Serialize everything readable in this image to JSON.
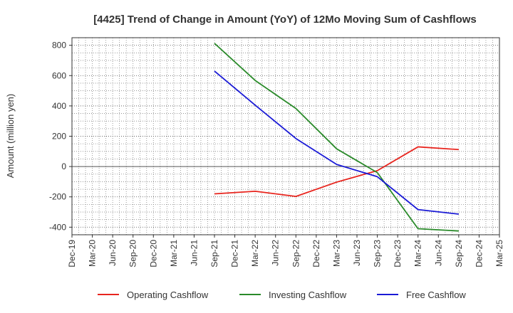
{
  "chart_data": {
    "type": "line",
    "title": "[4425]  Trend of Change in Amount (YoY) of 12Mo Moving Sum of Cashflows",
    "xlabel": "",
    "ylabel": "Amount (million yen)",
    "ylim": [
      -450,
      850
    ],
    "y_ticks": [
      -400,
      -200,
      0,
      200,
      400,
      600,
      800
    ],
    "y_tick_labels": [
      "-400",
      "-200",
      "0",
      "200",
      "400",
      "600",
      "800"
    ],
    "categories": [
      "Dec-19",
      "Mar-20",
      "Jun-20",
      "Sep-20",
      "Dec-20",
      "Mar-21",
      "Jun-21",
      "Sep-21",
      "Dec-21",
      "Mar-22",
      "Jun-22",
      "Sep-22",
      "Dec-22",
      "Mar-23",
      "Jun-23",
      "Sep-23",
      "Dec-23",
      "Mar-24",
      "Jun-24",
      "Sep-24",
      "Dec-24",
      "Mar-25"
    ],
    "grid": true,
    "legend_position": "bottom",
    "series": [
      {
        "name": "Operating Cashflow",
        "color": "#e8251e",
        "points": [
          {
            "x": "Sep-21",
            "y": -180
          },
          {
            "x": "Mar-22",
            "y": -163
          },
          {
            "x": "Sep-22",
            "y": -197
          },
          {
            "x": "Mar-23",
            "y": -103
          },
          {
            "x": "Sep-23",
            "y": -27
          },
          {
            "x": "Mar-24",
            "y": 130
          },
          {
            "x": "Sep-24",
            "y": 112
          }
        ]
      },
      {
        "name": "Investing Cashflow",
        "color": "#2a8a2a",
        "points": [
          {
            "x": "Sep-21",
            "y": 813
          },
          {
            "x": "Mar-22",
            "y": 568
          },
          {
            "x": "Sep-22",
            "y": 383
          },
          {
            "x": "Mar-23",
            "y": 117
          },
          {
            "x": "Sep-23",
            "y": -40
          },
          {
            "x": "Mar-24",
            "y": -410
          },
          {
            "x": "Sep-24",
            "y": -425
          }
        ]
      },
      {
        "name": "Free Cashflow",
        "color": "#1b1bd6",
        "points": [
          {
            "x": "Sep-21",
            "y": 630
          },
          {
            "x": "Mar-22",
            "y": 405
          },
          {
            "x": "Sep-22",
            "y": 185
          },
          {
            "x": "Mar-23",
            "y": 14
          },
          {
            "x": "Sep-23",
            "y": -67
          },
          {
            "x": "Mar-24",
            "y": -284
          },
          {
            "x": "Sep-24",
            "y": -314
          }
        ]
      }
    ]
  }
}
